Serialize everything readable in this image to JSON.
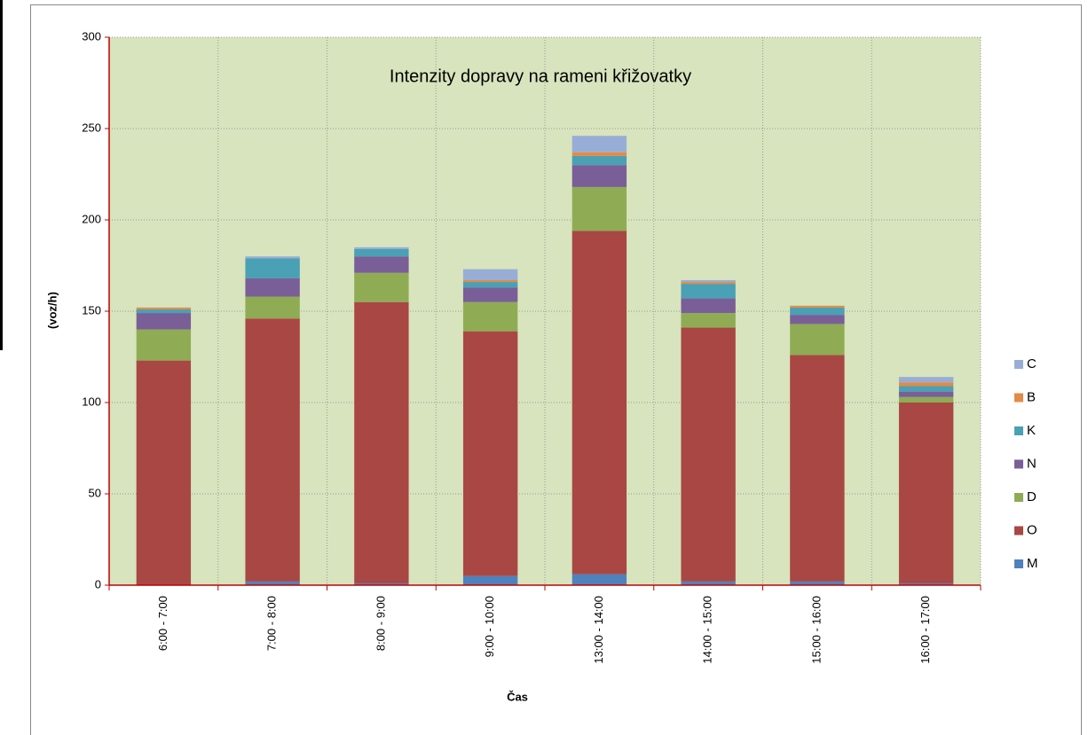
{
  "chart_data": {
    "type": "stacked_bar",
    "title": "Intenzity dopravy na rameni křižovatky",
    "x_label": "Čas",
    "y_label": "(voz/h)",
    "categories": [
      "6:00 - 7:00",
      "7:00 - 8:00",
      "8:00 - 9:00",
      "9:00 - 10:00",
      "13:00 - 14:00",
      "14:00 - 15:00",
      "15:00 - 16:00",
      "16:00 - 17:00"
    ],
    "series": [
      {
        "name": "M",
        "color": "#4f81bd",
        "values": [
          0,
          2,
          1,
          5,
          6,
          2,
          2,
          1
        ]
      },
      {
        "name": "O",
        "color": "#a94744",
        "values": [
          123,
          144,
          154,
          134,
          188,
          139,
          124,
          99
        ]
      },
      {
        "name": "D",
        "color": "#8fac55",
        "values": [
          17,
          12,
          16,
          16,
          24,
          8,
          17,
          3
        ]
      },
      {
        "name": "N",
        "color": "#7a5e98",
        "values": [
          9,
          10,
          9,
          8,
          12,
          8,
          5,
          3
        ]
      },
      {
        "name": "K",
        "color": "#4aa0b5",
        "values": [
          2,
          11,
          4,
          3,
          5,
          8,
          4,
          3
        ]
      },
      {
        "name": "B",
        "color": "#e38b45",
        "values": [
          1,
          0,
          0,
          1,
          2,
          1,
          1,
          2
        ]
      },
      {
        "name": "C",
        "color": "#98add6",
        "values": [
          0,
          1,
          1,
          6,
          9,
          1,
          0,
          3
        ]
      }
    ],
    "ylim": [
      0,
      300
    ],
    "yticks": [
      0,
      50,
      100,
      150,
      200,
      250,
      300
    ],
    "grid": true
  }
}
